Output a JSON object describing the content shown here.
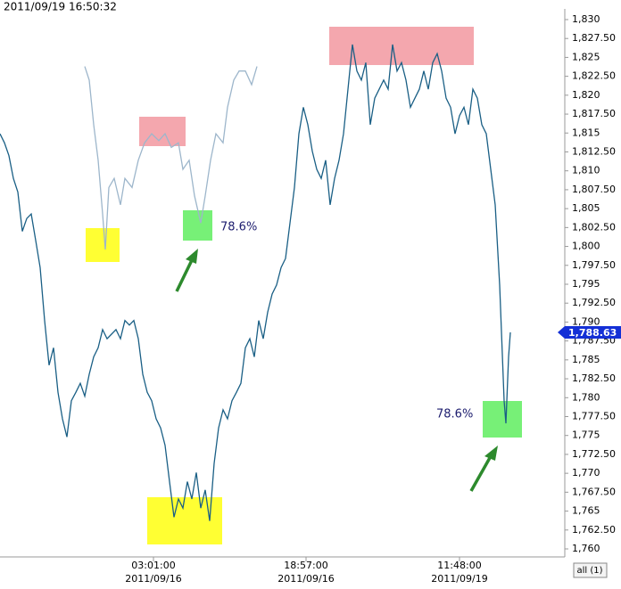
{
  "chart_data": {
    "type": "line",
    "title": "2011/09/19 16:50:32",
    "xlim": [
      0,
      633
    ],
    "ylim": [
      1758.94,
      1832.59
    ],
    "xticks": [
      {
        "value": 172,
        "label": "03:01:00"
      },
      {
        "value": 343,
        "label": "18:57:00"
      },
      {
        "value": 515,
        "label": "11:48:00"
      }
    ],
    "xtick_dates": [
      "2011/09/16",
      "2011/09/16",
      "2011/09/19"
    ],
    "yticks": [
      {
        "value": 1760,
        "label": "1,760"
      },
      {
        "value": 1762.5,
        "label": "1,762.50"
      },
      {
        "value": 1765,
        "label": "1,765"
      },
      {
        "value": 1767.5,
        "label": "1,767.50"
      },
      {
        "value": 1770,
        "label": "1,770"
      },
      {
        "value": 1772.5,
        "label": "1,772.50"
      },
      {
        "value": 1775,
        "label": "1,775"
      },
      {
        "value": 1777.5,
        "label": "1,777.50"
      },
      {
        "value": 1780,
        "label": "1,780"
      },
      {
        "value": 1782.5,
        "label": "1,782.50"
      },
      {
        "value": 1785,
        "label": "1,785"
      },
      {
        "value": 1787.5,
        "label": "1,787.50"
      },
      {
        "value": 1790,
        "label": "1,790"
      },
      {
        "value": 1792.5,
        "label": "1,792.50"
      },
      {
        "value": 1795,
        "label": "1,795"
      },
      {
        "value": 1797.5,
        "label": "1,797.50"
      },
      {
        "value": 1800,
        "label": "1,800"
      },
      {
        "value": 1802.5,
        "label": "1,802.50"
      },
      {
        "value": 1805,
        "label": "1,805"
      },
      {
        "value": 1807.5,
        "label": "1,807.50"
      },
      {
        "value": 1810,
        "label": "1,810"
      },
      {
        "value": 1812.5,
        "label": "1,812.50"
      },
      {
        "value": 1815,
        "label": "1,815"
      },
      {
        "value": 1817.5,
        "label": "1,817.50"
      },
      {
        "value": 1820,
        "label": "1,820"
      },
      {
        "value": 1822.5,
        "label": "1,822.50"
      },
      {
        "value": 1825,
        "label": "1,825"
      },
      {
        "value": 1827.5,
        "label": "1,827.50"
      },
      {
        "value": 1830,
        "label": "1,830"
      }
    ],
    "series": [
      {
        "color": "#1a5f85",
        "x": [
          0,
          5,
          10,
          15,
          20,
          25,
          30,
          35,
          40,
          45,
          50,
          55,
          60,
          65,
          70,
          75,
          80,
          85,
          90,
          95,
          100,
          105,
          110,
          115,
          120,
          125,
          130,
          135,
          140,
          145,
          150,
          155,
          160,
          165,
          170,
          175,
          180,
          185,
          190,
          195,
          200,
          205,
          210,
          215,
          220,
          225,
          230,
          235,
          240,
          245,
          250,
          255,
          260,
          265,
          270,
          275,
          280,
          285,
          290,
          295,
          300,
          305,
          310,
          315,
          320,
          325,
          330,
          335,
          340,
          345,
          350,
          355,
          360,
          365,
          370,
          375,
          380,
          385,
          390,
          395,
          400,
          405,
          410,
          415,
          420,
          425,
          430,
          435,
          440,
          445,
          450,
          455,
          460,
          465,
          470,
          475,
          480,
          485,
          490,
          495,
          500,
          505,
          510,
          515,
          520,
          525,
          530,
          535,
          540,
          545,
          550,
          555,
          560,
          565,
          567,
          570,
          572
        ],
        "values": [
          1814.9,
          1813.7,
          1812.0,
          1809.0,
          1807.2,
          1802.0,
          1803.7,
          1804.3,
          1800.8,
          1797.2,
          1790.2,
          1784.3,
          1786.6,
          1780.7,
          1777.2,
          1774.8,
          1779.6,
          1780.7,
          1781.9,
          1780.2,
          1783.1,
          1785.4,
          1786.6,
          1789.0,
          1787.8,
          1788.4,
          1789.0,
          1787.8,
          1790.2,
          1789.6,
          1790.2,
          1787.8,
          1783.1,
          1780.7,
          1779.6,
          1777.2,
          1776.0,
          1773.7,
          1768.9,
          1764.2,
          1766.6,
          1765.4,
          1768.9,
          1766.6,
          1770.1,
          1765.4,
          1767.8,
          1763.7,
          1771.3,
          1776.0,
          1778.4,
          1777.2,
          1779.6,
          1780.7,
          1781.9,
          1786.6,
          1787.8,
          1785.4,
          1790.2,
          1787.8,
          1791.3,
          1793.7,
          1794.9,
          1797.2,
          1798.4,
          1803.1,
          1807.8,
          1814.9,
          1818.4,
          1816.1,
          1812.6,
          1810.2,
          1809.0,
          1811.4,
          1805.5,
          1809.0,
          1811.4,
          1814.9,
          1820.8,
          1826.7,
          1823.2,
          1822.0,
          1824.3,
          1816.1,
          1819.6,
          1820.8,
          1822.0,
          1820.8,
          1826.7,
          1823.2,
          1824.3,
          1822.0,
          1818.4,
          1819.6,
          1820.8,
          1823.2,
          1820.8,
          1824.3,
          1825.5,
          1823.2,
          1819.6,
          1818.4,
          1814.9,
          1817.3,
          1818.4,
          1816.1,
          1820.8,
          1819.6,
          1816.1,
          1814.9,
          1810.2,
          1805.5,
          1794.9,
          1779.6,
          1776.6,
          1785.4,
          1788.63
        ]
      },
      {
        "color": "#9db6cb",
        "x": [
          95,
          100,
          105,
          110,
          115,
          118,
          122,
          128,
          135,
          140,
          148,
          155,
          162,
          170,
          178,
          185,
          192,
          200,
          205,
          212,
          218,
          225,
          230,
          236,
          242,
          250,
          255,
          262,
          268,
          275,
          282,
          288
        ],
        "values": [
          1823.8,
          1822.0,
          1816.1,
          1811.4,
          1804.3,
          1799.6,
          1807.8,
          1809.0,
          1805.5,
          1809.0,
          1807.8,
          1811.4,
          1813.7,
          1814.9,
          1814.0,
          1814.9,
          1813.1,
          1813.7,
          1810.2,
          1811.4,
          1806.7,
          1803.1,
          1806.7,
          1811.4,
          1814.9,
          1813.7,
          1818.4,
          1822.0,
          1823.2,
          1823.2,
          1821.4,
          1823.8
        ]
      }
    ],
    "last_price": {
      "value": 1788.63,
      "label": "1,788.63"
    },
    "annotations": [
      "78.6%",
      "78.6%"
    ],
    "button": "all (1)"
  }
}
